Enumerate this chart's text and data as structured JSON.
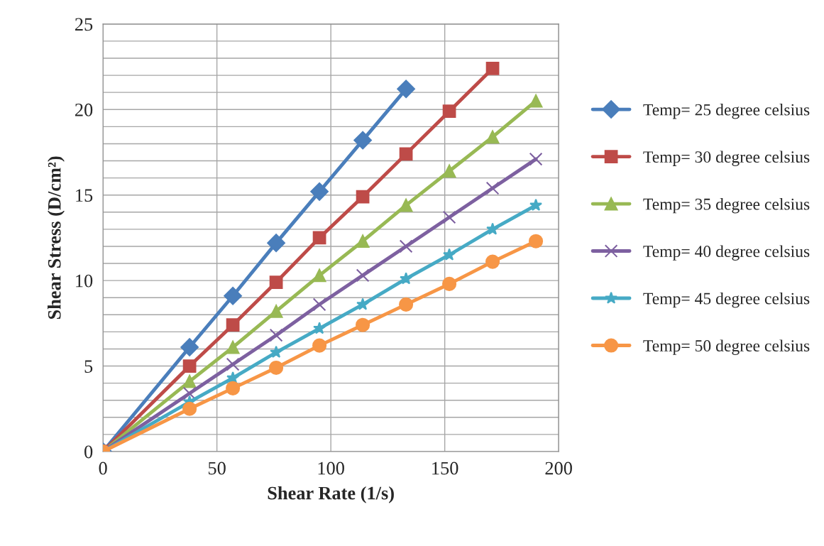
{
  "chart_data": {
    "type": "line",
    "xlabel": "Shear Rate (1/s)",
    "ylabel": "Shear Stress (D/cm²)",
    "x": [
      0,
      38,
      57,
      76,
      95,
      114,
      133,
      152,
      171,
      190
    ],
    "xlim": [
      0,
      200
    ],
    "xticks": [
      0,
      50,
      100,
      150,
      200
    ],
    "ylim": [
      0,
      25
    ],
    "yticks": [
      0,
      {
        "value": 1,
        "label": null
      },
      {
        "value": 2,
        "label": null
      },
      {
        "value": 3,
        "label": null
      },
      {
        "value": 4,
        "label": null
      },
      5,
      {
        "value": 6,
        "label": null
      },
      {
        "value": 7,
        "label": null
      },
      {
        "value": 8,
        "label": null
      },
      {
        "value": 9,
        "label": null
      },
      10,
      {
        "value": 11,
        "label": null
      },
      {
        "value": 12,
        "label": null
      },
      {
        "value": 13,
        "label": null
      },
      {
        "value": 14,
        "label": null
      },
      15,
      {
        "value": 16,
        "label": null
      },
      {
        "value": 17,
        "label": null
      },
      {
        "value": 18,
        "label": null
      },
      {
        "value": 19,
        "label": null
      },
      20,
      {
        "value": 21,
        "label": null
      },
      {
        "value": 22,
        "label": null
      },
      {
        "value": 23,
        "label": null
      },
      {
        "value": 24,
        "label": null
      },
      25
    ],
    "grid": true,
    "legend": "right",
    "series": [
      {
        "name": "Temp= 25 degree celsius",
        "color": "#4a7ebb",
        "marker": "diamond",
        "values": [
          0,
          6.1,
          9.1,
          12.2,
          15.2,
          18.2,
          21.2,
          null,
          null,
          null
        ]
      },
      {
        "name": "Temp= 30 degree celsius",
        "color": "#be4b48",
        "marker": "square",
        "values": [
          0,
          5.0,
          7.4,
          9.9,
          12.5,
          14.9,
          17.4,
          19.9,
          22.4,
          null
        ]
      },
      {
        "name": "Temp= 35 degree celsius",
        "color": "#98b954",
        "marker": "triangle",
        "values": [
          0,
          4.1,
          6.1,
          8.2,
          10.3,
          12.3,
          14.4,
          16.4,
          18.4,
          20.5
        ]
      },
      {
        "name": "Temp= 40 degree celsius",
        "color": "#7d60a0",
        "marker": "cross",
        "values": [
          0,
          3.4,
          5.1,
          6.8,
          8.6,
          10.3,
          12.0,
          13.7,
          15.4,
          17.1
        ]
      },
      {
        "name": "Temp= 45 degree celsius",
        "color": "#46aac5",
        "marker": "star",
        "values": [
          0,
          2.9,
          4.3,
          5.8,
          7.2,
          8.6,
          10.1,
          11.5,
          13.0,
          14.4
        ]
      },
      {
        "name": "Temp= 50 degree celsius",
        "color": "#f79646",
        "marker": "circle",
        "values": [
          0,
          2.5,
          3.7,
          4.9,
          6.2,
          7.4,
          8.6,
          9.8,
          11.1,
          12.3
        ]
      }
    ]
  }
}
